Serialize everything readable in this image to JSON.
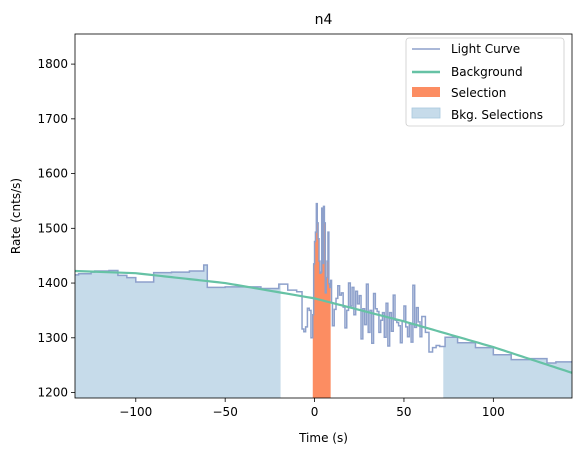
{
  "chart_data": {
    "type": "line",
    "title": "n4",
    "xlabel": "Time (s)",
    "ylabel": "Rate (cnts/s)",
    "xlim": [
      -134,
      144
    ],
    "ylim": [
      1190,
      1855
    ],
    "xticks": [
      -100,
      -50,
      0,
      50,
      100
    ],
    "yticks": [
      1200,
      1300,
      1400,
      1500,
      1600,
      1700,
      1800
    ],
    "grid": false,
    "legend_position": "top-right",
    "colors": {
      "light_curve": "#8da0cb",
      "background": "#66c2a5",
      "selection": "#fc8d62",
      "bkg_selection": "#c6dbea"
    },
    "legend": [
      "Light Curve",
      "Background",
      "Selection",
      "Bkg. Selections"
    ],
    "light_curve": {
      "x": [
        -134,
        -132,
        -125,
        -123,
        -115,
        -110,
        -105,
        -100,
        -90,
        -80,
        -70,
        -62,
        -60,
        -50,
        -35,
        -30,
        -20,
        -15,
        -10,
        -7,
        -6,
        -5,
        -4,
        -3,
        -2,
        -1,
        -0.5,
        0,
        0.5,
        1,
        1.5,
        2,
        2.5,
        3,
        3.5,
        4,
        4.5,
        5,
        5.5,
        6,
        6.5,
        7,
        7.5,
        8,
        8.5,
        9,
        9.5,
        10,
        11,
        12,
        13,
        14,
        15,
        16,
        17,
        18,
        19,
        20,
        21,
        22,
        23,
        24,
        25,
        26,
        27,
        28,
        29,
        30,
        31,
        32,
        33,
        34,
        35,
        36,
        37,
        38,
        39,
        40,
        41,
        42,
        43,
        44,
        45,
        46,
        47,
        48,
        49,
        50,
        51,
        52,
        53,
        54,
        55,
        56,
        57,
        58,
        59,
        60,
        62,
        64,
        66,
        68,
        70,
        73,
        80,
        90,
        100,
        110,
        120,
        130,
        135,
        144
      ],
      "y": [
        1415,
        1417,
        1420,
        1422,
        1423,
        1414,
        1410,
        1402,
        1419,
        1420,
        1422,
        1433,
        1392,
        1393,
        1393,
        1390,
        1398,
        1387,
        1384,
        1316,
        1311,
        1320,
        1354,
        1350,
        1300,
        1342,
        1435,
        1476,
        1493,
        1545,
        1510,
        1481,
        1440,
        1418,
        1420,
        1537,
        1436,
        1540,
        1510,
        1382,
        1410,
        1440,
        1493,
        1399,
        1392,
        1405,
        1364,
        1322,
        1352,
        1372,
        1395,
        1378,
        1382,
        1356,
        1318,
        1350,
        1400,
        1358,
        1392,
        1342,
        1385,
        1362,
        1377,
        1298,
        1353,
        1324,
        1398,
        1310,
        1350,
        1290,
        1381,
        1353,
        1348,
        1310,
        1332,
        1346,
        1301,
        1363,
        1285,
        1346,
        1312,
        1378,
        1332,
        1328,
        1322,
        1291,
        1330,
        1358,
        1320,
        1302,
        1325,
        1292,
        1396,
        1319,
        1355,
        1329,
        1302,
        1339,
        1310,
        1274,
        1282,
        1286,
        1284,
        1301,
        1291,
        1282,
        1269,
        1260,
        1262,
        1254,
        1256,
        1256
      ]
    },
    "background": {
      "x": [
        -134,
        -100,
        -50,
        0,
        50,
        100,
        144
      ],
      "y": [
        1422,
        1418,
        1400,
        1372,
        1330,
        1283,
        1236
      ]
    },
    "selection": {
      "x_range": [
        -1,
        9
      ]
    },
    "bkg_selections": [
      {
        "x_range": [
          -134,
          -19
        ]
      },
      {
        "x_range": [
          72,
          144
        ]
      }
    ]
  }
}
